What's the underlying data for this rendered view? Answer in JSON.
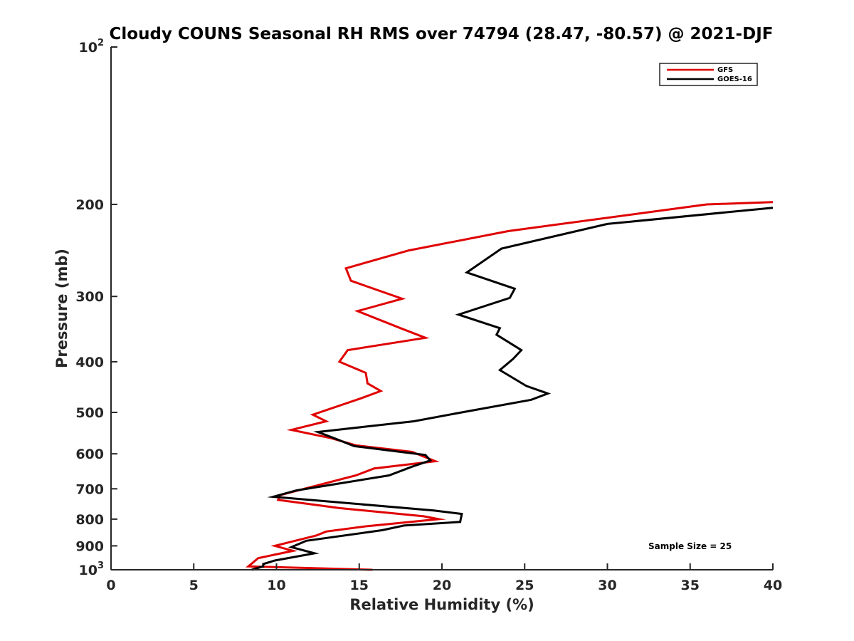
{
  "chart_data": {
    "type": "line",
    "title": "Cloudy COUNS Seasonal RH RMS over 74794 (28.47, -80.57) @ 2021-DJF",
    "xlabel": "Relative Humidity (%)",
    "ylabel": "Pressure (mb)",
    "xlim": [
      0,
      40
    ],
    "ylim": [
      100,
      1000
    ],
    "yscale": "log",
    "y_reversed": true,
    "x_ticks": [
      "0",
      "5",
      "10",
      "15",
      "20",
      "25",
      "30",
      "35",
      "40"
    ],
    "y_ticks": [
      {
        "value": 100,
        "base": "10",
        "exp": "2"
      },
      {
        "value": 200,
        "label": "200"
      },
      {
        "value": 300,
        "label": "300"
      },
      {
        "value": 400,
        "label": "400"
      },
      {
        "value": 500,
        "label": "500"
      },
      {
        "value": 600,
        "label": "600"
      },
      {
        "value": 700,
        "label": "700"
      },
      {
        "value": 800,
        "label": "800"
      },
      {
        "value": 900,
        "label": "900"
      },
      {
        "value": 1000,
        "base": "10",
        "exp": "3"
      }
    ],
    "legend": {
      "location": "top-right"
    },
    "annotation": "Sample Size = 25",
    "series": [
      {
        "name": "GFS",
        "color": "#e00000",
        "points": [
          [
            40,
            198
          ],
          [
            36,
            200
          ],
          [
            24,
            225
          ],
          [
            18,
            245
          ],
          [
            14.2,
            265
          ],
          [
            14.5,
            280
          ],
          [
            17.6,
            303
          ],
          [
            14.9,
            320
          ],
          [
            17.5,
            345
          ],
          [
            19.0,
            360
          ],
          [
            14.3,
            380
          ],
          [
            13.8,
            400
          ],
          [
            15.4,
            420
          ],
          [
            15.5,
            440
          ],
          [
            16.3,
            455
          ],
          [
            15.1,
            470
          ],
          [
            12.2,
            505
          ],
          [
            13.0,
            520
          ],
          [
            10.9,
            540
          ],
          [
            13.3,
            560
          ],
          [
            14.8,
            578
          ],
          [
            18.2,
            595
          ],
          [
            19.6,
            620
          ],
          [
            15.9,
            640
          ],
          [
            14.8,
            660
          ],
          [
            10.2,
            720
          ],
          [
            10.1,
            735
          ],
          [
            13.8,
            762
          ],
          [
            18.9,
            790
          ],
          [
            19.8,
            800
          ],
          [
            15.5,
            825
          ],
          [
            13.0,
            845
          ],
          [
            12.4,
            860
          ],
          [
            9.9,
            900
          ],
          [
            11.0,
            920
          ],
          [
            8.9,
            950
          ],
          [
            8.3,
            985
          ],
          [
            15.8,
            1000
          ]
        ]
      },
      {
        "name": "GOES-16",
        "color": "#000000",
        "points": [
          [
            40,
            203
          ],
          [
            30.0,
            218
          ],
          [
            23.6,
            243
          ],
          [
            21.5,
            270
          ],
          [
            24.4,
            290
          ],
          [
            24.1,
            302
          ],
          [
            21.0,
            325
          ],
          [
            23.5,
            345
          ],
          [
            23.3,
            355
          ],
          [
            24.8,
            380
          ],
          [
            24.3,
            395
          ],
          [
            23.5,
            415
          ],
          [
            25.1,
            445
          ],
          [
            26.4,
            460
          ],
          [
            25.4,
            473
          ],
          [
            21.2,
            500
          ],
          [
            18.3,
            520
          ],
          [
            12.5,
            545
          ],
          [
            13.6,
            562
          ],
          [
            14.7,
            580
          ],
          [
            19.0,
            603
          ],
          [
            19.3,
            618
          ],
          [
            18.2,
            635
          ],
          [
            16.8,
            660
          ],
          [
            11.2,
            705
          ],
          [
            9.8,
            725
          ],
          [
            19.5,
            770
          ],
          [
            21.2,
            782
          ],
          [
            21.1,
            810
          ],
          [
            17.7,
            823
          ],
          [
            16.4,
            840
          ],
          [
            11.8,
            880
          ],
          [
            10.9,
            905
          ],
          [
            12.3,
            930
          ],
          [
            9.9,
            960
          ],
          [
            9.2,
            975
          ],
          [
            9.2,
            985
          ],
          [
            8.5,
            1000
          ]
        ]
      }
    ]
  }
}
